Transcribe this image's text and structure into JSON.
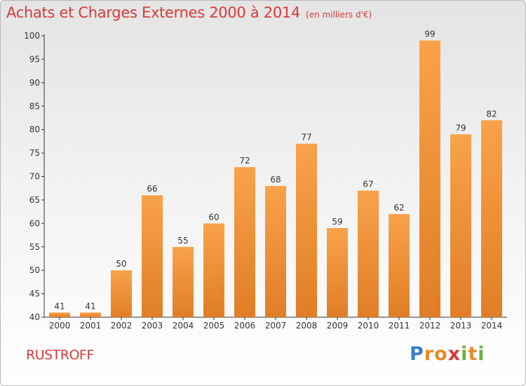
{
  "chart_data": {
    "type": "bar",
    "title": "Achats et Charges Externes 2000 à 2014",
    "unit": "(en milliers d'€)",
    "categories": [
      "2000",
      "2001",
      "2002",
      "2003",
      "2004",
      "2005",
      "2006",
      "2007",
      "2008",
      "2009",
      "2010",
      "2011",
      "2012",
      "2013",
      "2014"
    ],
    "values": [
      41,
      41,
      50,
      66,
      55,
      60,
      72,
      68,
      77,
      59,
      67,
      62,
      99,
      79,
      82
    ],
    "ylim": [
      40,
      100
    ],
    "yticks": [
      40,
      45,
      50,
      55,
      60,
      65,
      70,
      75,
      80,
      85,
      90,
      95,
      100
    ],
    "xlabel": "",
    "ylabel": "",
    "grid": false,
    "bar_color_top": "#f9a24a",
    "bar_color_bottom": "#e07e26"
  },
  "footer": {
    "commune": "RUSTROFF",
    "logo": {
      "letters": [
        "P",
        "r",
        "o",
        "x",
        "i",
        "t",
        "i"
      ],
      "colors": [
        "#3a7fcc",
        "#e98b2a",
        "#e98b2a",
        "#d63a3a",
        "#6bb33b",
        "#e98b2a",
        "#6bb33b"
      ]
    }
  },
  "colors": {
    "title": "#d63a3a",
    "axis": "#333333"
  }
}
